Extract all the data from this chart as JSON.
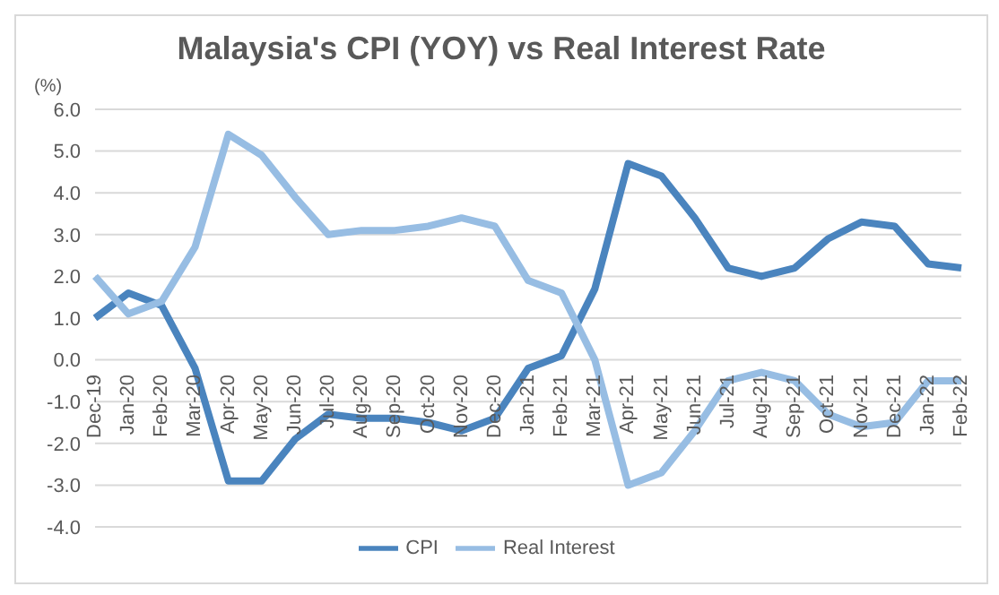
{
  "chart_data": {
    "type": "line",
    "title": "Malaysia's CPI (YOY) vs Real Interest Rate",
    "ylabel": "(%)",
    "categories": [
      "Dec-19",
      "Jan-20",
      "Feb-20",
      "Mar-20",
      "Apr-20",
      "May-20",
      "Jun-20",
      "Jul-20",
      "Aug-20",
      "Sep-20",
      "Oct-20",
      "Nov-20",
      "Dec-20",
      "Jan-21",
      "Feb-21",
      "Mar-21",
      "Apr-21",
      "May-21",
      "Jun-21",
      "Jul-21",
      "Aug-21",
      "Sep-21",
      "Oct-21",
      "Nov-21",
      "Dec-21",
      "Jan-22",
      "Feb-22"
    ],
    "series": [
      {
        "name": "CPI",
        "color": "#4a84be",
        "values": [
          1.0,
          1.6,
          1.3,
          -0.2,
          -2.9,
          -2.9,
          -1.9,
          -1.3,
          -1.4,
          -1.4,
          -1.5,
          -1.7,
          -1.4,
          -0.2,
          0.1,
          1.7,
          4.7,
          4.4,
          3.4,
          2.2,
          2.0,
          2.2,
          2.9,
          3.3,
          3.2,
          2.3,
          2.2
        ]
      },
      {
        "name": "Real Interest",
        "color": "#97bde3",
        "values": [
          2.0,
          1.1,
          1.4,
          2.7,
          5.4,
          4.9,
          3.9,
          3.0,
          3.1,
          3.1,
          3.2,
          3.4,
          3.2,
          1.9,
          1.6,
          0.0,
          -3.0,
          -2.7,
          -1.7,
          -0.5,
          -0.3,
          -0.5,
          -1.3,
          -1.6,
          -1.5,
          -0.5,
          -0.5
        ]
      }
    ],
    "ylim": [
      -4,
      6
    ],
    "yticks": [
      {
        "value": -4,
        "label": "-4.0"
      },
      {
        "value": -3,
        "label": "-3.0"
      },
      {
        "value": -2,
        "label": "-2.0"
      },
      {
        "value": -1,
        "label": "-1.0"
      },
      {
        "value": 0,
        "label": "0.0"
      },
      {
        "value": 1,
        "label": "1.0"
      },
      {
        "value": 2,
        "label": "2.0"
      },
      {
        "value": 3,
        "label": "3.0"
      },
      {
        "value": 4,
        "label": "4.0"
      },
      {
        "value": 5,
        "label": "5.0"
      },
      {
        "value": 6,
        "label": "6.0"
      }
    ],
    "grid": "y",
    "legend": "bottom",
    "marker": "none",
    "line_style": "solid"
  }
}
